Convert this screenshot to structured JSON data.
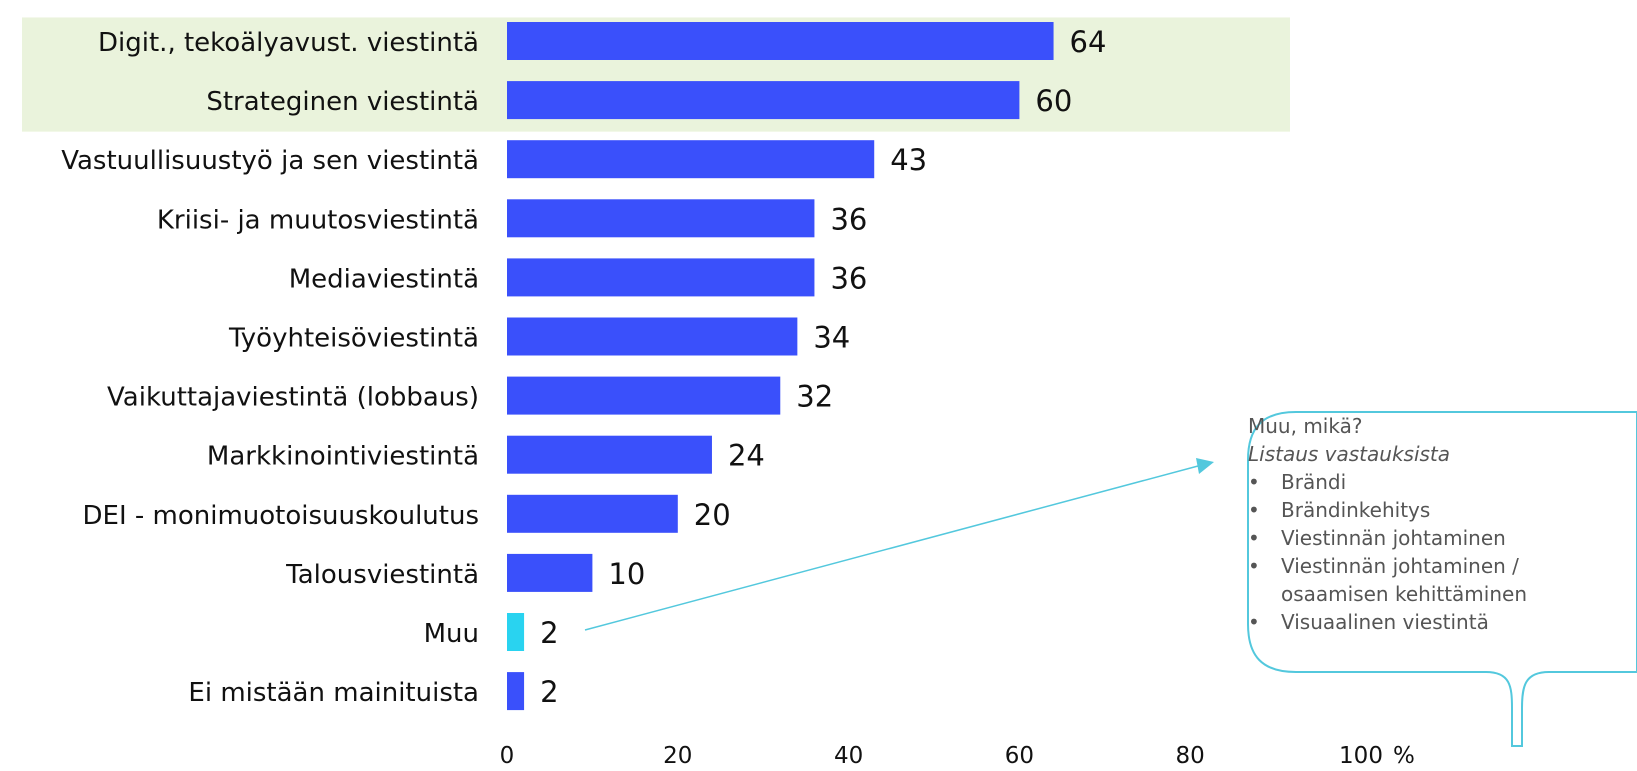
{
  "chart_data": {
    "type": "bar",
    "orientation": "horizontal",
    "categories": [
      "Digit., tekoälyavust. viestintä",
      "Strateginen viestintä",
      "Vastuullisuustyö ja sen viestintä",
      "Kriisi- ja muutosviestintä",
      "Mediaviestintä",
      "Työyhteisöviestintä",
      "Vaikuttajaviestintä (lobbaus)",
      "Markkinointiviestintä",
      "DEI - monimuotoisuuskoulutus",
      "Talousviestintä",
      "Muu",
      "Ei mistään mainituista"
    ],
    "values": [
      64,
      60,
      43,
      36,
      36,
      34,
      32,
      24,
      20,
      10,
      2,
      2
    ],
    "xlim": [
      0,
      100
    ],
    "xticks": [
      "0",
      "20",
      "40",
      "60",
      "80",
      "100"
    ],
    "x_unit": "%",
    "highlighted_categories": [
      0,
      1
    ],
    "colors": {
      "bar": "#3a50fb",
      "bar_other": "#29d3f0",
      "highlight_band": "#eaf3dc",
      "callout_border": "#53c8dd",
      "arrow": "#53c8dd"
    },
    "grid": false,
    "legend": "none"
  },
  "callout": {
    "title": "Muu, mikä?",
    "subtitle": "Listaus vastauksista",
    "items": [
      "Brändi",
      "Brändinkehitys",
      "Viestinnän johtaminen",
      "Viestinnän johtaminen /",
      "osaamisen kehittäminen",
      "Visuaalinen viestintä"
    ]
  }
}
